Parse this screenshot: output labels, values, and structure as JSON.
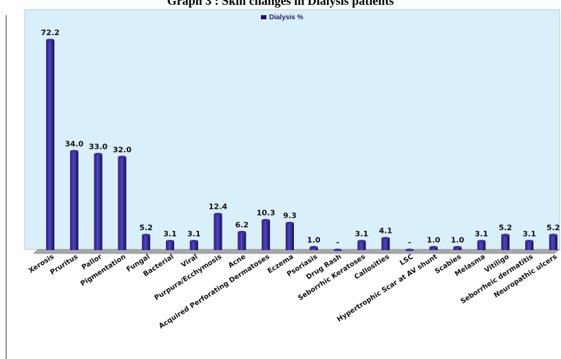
{
  "chart_data": {
    "type": "bar",
    "title": "Graph 3 : Skin changes in Dialysis patients",
    "legend": "Dialysis %",
    "legend_position": "top-center",
    "grid": false,
    "ylim": [
      0,
      72.2
    ],
    "categories": [
      "Xerosis",
      "Pruritus",
      "Pallor",
      "Pigmentation",
      "Fungal",
      "Bacterial",
      "Viral",
      "Purpura/Ecchymosis",
      "Acne",
      "Acquired Perforating Dermatoses",
      "Eczema",
      "Psoriasis",
      "Drug Rash",
      "Seborrhic Keratoses",
      "Callosities",
      "LSC",
      "Hypertrophic Scar at AV shunt",
      "Scabies",
      "Melasma",
      "Vitiligo",
      "Seborrheic dermatitis",
      "Neuropathic ulcers"
    ],
    "values": [
      72.2,
      34.0,
      33.0,
      32.0,
      5.2,
      3.1,
      3.1,
      12.4,
      6.2,
      10.3,
      9.3,
      1.0,
      null,
      3.1,
      4.1,
      null,
      1.0,
      1.0,
      3.1,
      5.2,
      3.1,
      5.2
    ],
    "data_labels": [
      "72.2",
      "34.0",
      "33.0",
      "32.0",
      "5.2",
      "3.1",
      "3.1",
      "12.4",
      "6.2",
      "10.3",
      "9.3",
      "1.0",
      "-",
      "3.1",
      "4.1",
      "-",
      "1.0",
      "1.0",
      "3.1",
      "5.2",
      "3.1",
      "5.2"
    ],
    "colors": {
      "plot_background": "#d9f0fa",
      "bar": "#1c0f7a",
      "bar_highlight": "#5a4fc0",
      "floor": "#9e9e9e"
    }
  }
}
